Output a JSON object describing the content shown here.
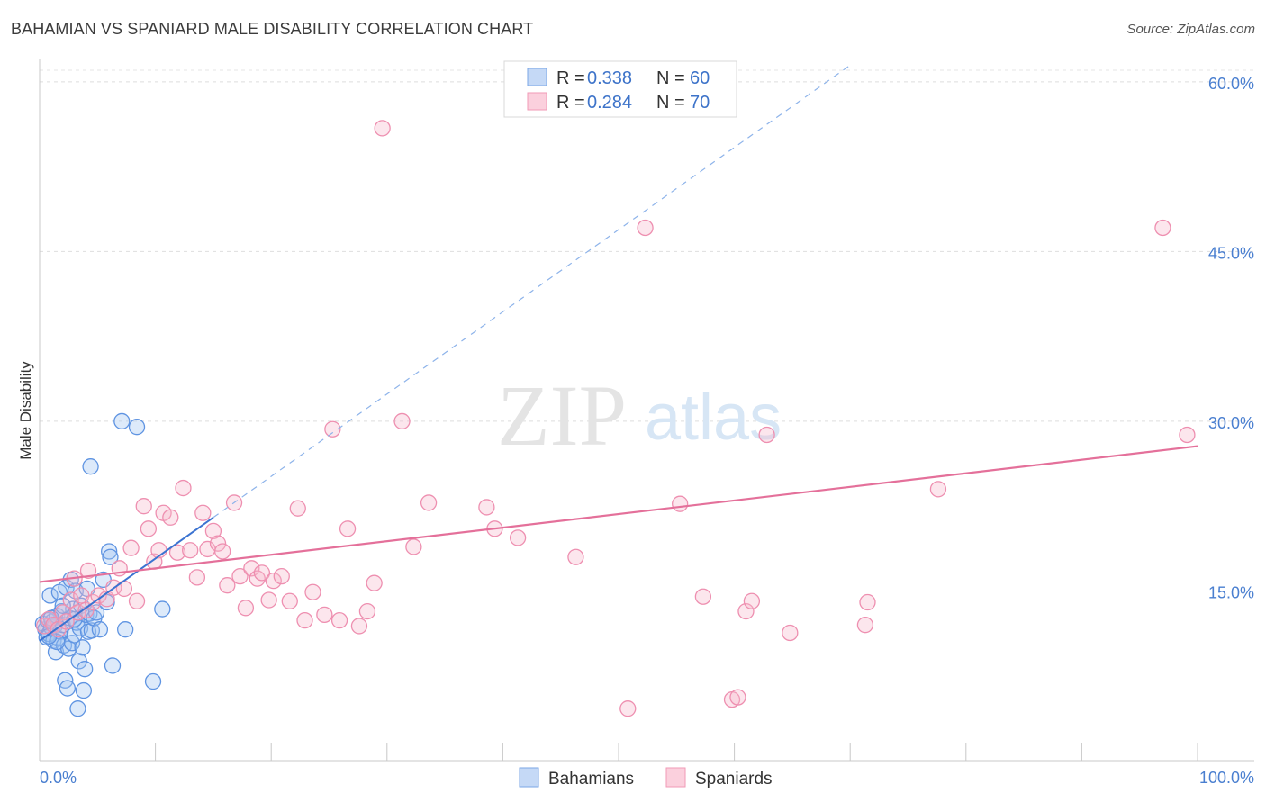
{
  "header": {
    "title": "BAHAMIAN VS SPANIARD MALE DISABILITY CORRELATION CHART",
    "source": "Source: ZipAtlas.com"
  },
  "watermark": {
    "zip": "ZIP",
    "atlas": "atlas"
  },
  "legend": {
    "r_label": "R =",
    "n_label": "N =",
    "entries": [
      {
        "r": "0.338",
        "n": "60"
      },
      {
        "r": "0.284",
        "n": "70"
      }
    ]
  },
  "bottom_legend": [
    "Bahamians",
    "Spaniards"
  ],
  "chart_data": {
    "type": "scatter",
    "title": "BAHAMIAN VS SPANIARD MALE DISABILITY CORRELATION CHART",
    "xlabel": "",
    "ylabel": "Male Disability",
    "xlim": [
      0,
      100
    ],
    "ylim": [
      0,
      61.5
    ],
    "x_tick_labels": [
      "0.0%",
      "100.0%"
    ],
    "y_ticks": [
      15,
      30,
      45,
      60
    ],
    "y_tick_labels": [
      "15.0%",
      "30.0%",
      "45.0%",
      "60.0%"
    ],
    "colors": {
      "bahamians": "#6fa1e8",
      "spaniards": "#f29ab8",
      "blue_line": "#3b73d1",
      "pink_line": "#e4709a"
    },
    "series": [
      {
        "name": "Bahamians",
        "R": 0.338,
        "N": 60,
        "trend": {
          "x0": 0,
          "y0": 10.6,
          "x1": 15,
          "y1": 21.5,
          "dashed_to_x": 70
        },
        "points": [
          [
            0.3,
            12.1
          ],
          [
            0.5,
            11.6
          ],
          [
            0.6,
            10.9
          ],
          [
            0.7,
            12.4
          ],
          [
            0.8,
            11.2
          ],
          [
            0.9,
            14.6
          ],
          [
            1.0,
            11.8
          ],
          [
            1.1,
            12.3
          ],
          [
            1.2,
            10.6
          ],
          [
            1.3,
            11.9
          ],
          [
            1.4,
            9.6
          ],
          [
            1.5,
            12.8
          ],
          [
            1.6,
            10.8
          ],
          [
            1.7,
            14.9
          ],
          [
            1.8,
            11.4
          ],
          [
            1.9,
            13.2
          ],
          [
            2.0,
            12.0
          ],
          [
            2.1,
            10.2
          ],
          [
            2.2,
            7.1
          ],
          [
            2.3,
            15.3
          ],
          [
            2.4,
            6.4
          ],
          [
            2.5,
            9.9
          ],
          [
            2.6,
            12.6
          ],
          [
            2.7,
            16.0
          ],
          [
            2.8,
            10.4
          ],
          [
            2.9,
            13.4
          ],
          [
            3.0,
            11.1
          ],
          [
            3.1,
            15.0
          ],
          [
            3.2,
            12.2
          ],
          [
            3.3,
            4.6
          ],
          [
            3.4,
            8.8
          ],
          [
            3.5,
            11.7
          ],
          [
            3.6,
            13.7
          ],
          [
            3.7,
            10.0
          ],
          [
            3.8,
            6.2
          ],
          [
            3.9,
            8.1
          ],
          [
            4.0,
            12.9
          ],
          [
            4.1,
            15.2
          ],
          [
            4.2,
            11.4
          ],
          [
            4.3,
            13.0
          ],
          [
            4.5,
            11.5
          ],
          [
            4.7,
            12.6
          ],
          [
            4.9,
            13.1
          ],
          [
            5.2,
            11.6
          ],
          [
            5.5,
            16.0
          ],
          [
            5.8,
            14.0
          ],
          [
            6.0,
            18.5
          ],
          [
            6.1,
            18.0
          ],
          [
            6.3,
            8.4
          ],
          [
            7.1,
            30.0
          ],
          [
            4.4,
            26.0
          ],
          [
            8.4,
            29.5
          ],
          [
            7.4,
            11.6
          ],
          [
            9.8,
            7.0
          ],
          [
            10.6,
            13.4
          ],
          [
            1.0,
            12.6
          ],
          [
            2.0,
            13.7
          ],
          [
            1.5,
            10.5
          ],
          [
            0.8,
            11.0
          ],
          [
            3.0,
            12.5
          ]
        ]
      },
      {
        "name": "Spaniards",
        "R": 0.284,
        "N": 70,
        "trend": {
          "x0": 0,
          "y0": 15.8,
          "x1": 100,
          "y1": 27.8
        },
        "points": [
          [
            0.4,
            11.9
          ],
          [
            0.8,
            12.5
          ],
          [
            1.2,
            12.0
          ],
          [
            1.6,
            11.6
          ],
          [
            2.0,
            13.1
          ],
          [
            2.3,
            12.3
          ],
          [
            2.7,
            14.2
          ],
          [
            3.0,
            16.1
          ],
          [
            3.3,
            13.1
          ],
          [
            3.6,
            14.6
          ],
          [
            4.0,
            13.3
          ],
          [
            4.2,
            16.8
          ],
          [
            4.6,
            14.0
          ],
          [
            5.1,
            14.6
          ],
          [
            5.8,
            14.3
          ],
          [
            6.4,
            15.3
          ],
          [
            6.9,
            17.0
          ],
          [
            7.3,
            15.2
          ],
          [
            7.9,
            18.8
          ],
          [
            8.4,
            14.1
          ],
          [
            9.0,
            22.5
          ],
          [
            9.4,
            20.5
          ],
          [
            9.9,
            17.6
          ],
          [
            10.3,
            18.6
          ],
          [
            10.7,
            21.9
          ],
          [
            11.3,
            21.5
          ],
          [
            11.9,
            18.4
          ],
          [
            12.4,
            24.1
          ],
          [
            13.0,
            18.6
          ],
          [
            13.6,
            16.2
          ],
          [
            14.1,
            21.9
          ],
          [
            14.5,
            18.7
          ],
          [
            15.0,
            20.3
          ],
          [
            15.4,
            19.2
          ],
          [
            15.8,
            18.5
          ],
          [
            16.2,
            15.5
          ],
          [
            16.8,
            22.8
          ],
          [
            17.3,
            16.3
          ],
          [
            17.8,
            13.5
          ],
          [
            18.3,
            17.0
          ],
          [
            18.8,
            16.1
          ],
          [
            19.2,
            16.6
          ],
          [
            19.8,
            14.2
          ],
          [
            20.2,
            15.9
          ],
          [
            20.9,
            16.3
          ],
          [
            21.6,
            14.1
          ],
          [
            22.3,
            22.3
          ],
          [
            22.9,
            12.4
          ],
          [
            23.6,
            14.9
          ],
          [
            24.6,
            12.9
          ],
          [
            25.3,
            29.3
          ],
          [
            25.9,
            12.4
          ],
          [
            26.6,
            20.5
          ],
          [
            27.6,
            11.9
          ],
          [
            28.3,
            13.2
          ],
          [
            28.9,
            15.7
          ],
          [
            29.6,
            55.9
          ],
          [
            31.3,
            30.0
          ],
          [
            32.3,
            18.9
          ],
          [
            33.6,
            22.8
          ],
          [
            38.6,
            22.4
          ],
          [
            39.3,
            20.5
          ],
          [
            41.3,
            19.7
          ],
          [
            46.3,
            18.0
          ],
          [
            50.8,
            4.6
          ],
          [
            52.3,
            47.1
          ],
          [
            55.3,
            22.7
          ],
          [
            57.3,
            14.5
          ],
          [
            59.8,
            5.4
          ],
          [
            71.3,
            12.0
          ]
        ],
        "extra_points": [
          [
            60.3,
            5.6
          ],
          [
            61.0,
            13.2
          ],
          [
            61.5,
            14.1
          ],
          [
            62.8,
            28.8
          ],
          [
            64.8,
            11.3
          ],
          [
            71.5,
            14.0
          ],
          [
            77.6,
            24.0
          ],
          [
            97.0,
            47.1
          ],
          [
            99.1,
            28.8
          ]
        ]
      }
    ]
  }
}
